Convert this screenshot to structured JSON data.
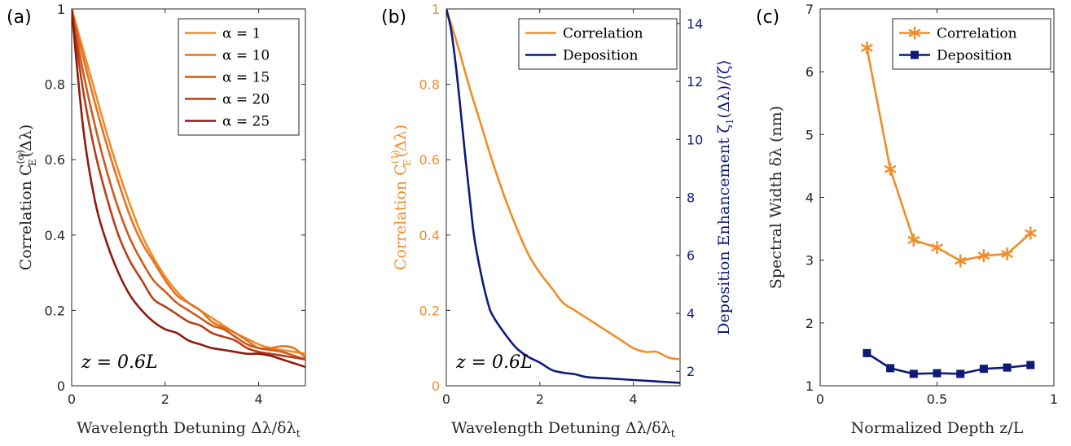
{
  "chart_data": [
    {
      "panel": "(a)",
      "type": "line",
      "xlabel": "Wavelength Detuning Δλ/δλ",
      "xlabel_sub": "t",
      "ylabel": "Correlation C",
      "ylabel_sup": "(α)",
      "ylabel_sub": "E",
      "ylabel_tail": "(Δλ)",
      "xlim": [
        0,
        5
      ],
      "ylim": [
        0,
        1
      ],
      "xticks": [
        0,
        2,
        4
      ],
      "yticks": [
        0,
        0.2,
        0.4,
        0.6,
        0.8,
        1
      ],
      "ytick_labels": [
        "0",
        "0.2",
        "0.4",
        "0.6",
        "0.8",
        "1"
      ],
      "annotation": "z = 0.6L",
      "legend_position": "top-right",
      "series": [
        {
          "name": "α = 1",
          "color": "#F28C28",
          "x": [
            0,
            0.25,
            0.5,
            0.75,
            1,
            1.25,
            1.5,
            1.75,
            2,
            2.25,
            2.5,
            2.75,
            3,
            3.25,
            3.5,
            3.75,
            4,
            4.25,
            4.5,
            4.75,
            5
          ],
          "y": [
            1,
            0.89,
            0.78,
            0.67,
            0.57,
            0.48,
            0.4,
            0.34,
            0.29,
            0.25,
            0.22,
            0.2,
            0.18,
            0.16,
            0.14,
            0.125,
            0.11,
            0.1,
            0.095,
            0.09,
            0.085
          ]
        },
        {
          "name": "α = 10",
          "color": "#E47222",
          "x": [
            0,
            0.25,
            0.5,
            0.75,
            1,
            1.25,
            1.5,
            1.75,
            2,
            2.25,
            2.5,
            2.75,
            3,
            3.25,
            3.5,
            3.75,
            4,
            4.25,
            4.5,
            4.75,
            5
          ],
          "y": [
            1,
            0.87,
            0.75,
            0.64,
            0.54,
            0.45,
            0.38,
            0.33,
            0.28,
            0.24,
            0.22,
            0.2,
            0.17,
            0.155,
            0.14,
            0.12,
            0.1,
            0.1,
            0.105,
            0.1,
            0.075
          ]
        },
        {
          "name": "α = 15",
          "color": "#CF5A1D",
          "x": [
            0,
            0.25,
            0.5,
            0.75,
            1,
            1.25,
            1.5,
            1.75,
            2,
            2.25,
            2.5,
            2.75,
            3,
            3.25,
            3.5,
            3.75,
            4,
            4.25,
            4.5,
            4.75,
            5
          ],
          "y": [
            1,
            0.83,
            0.69,
            0.57,
            0.47,
            0.39,
            0.33,
            0.28,
            0.25,
            0.22,
            0.2,
            0.18,
            0.16,
            0.15,
            0.13,
            0.11,
            0.1,
            0.095,
            0.09,
            0.08,
            0.07
          ]
        },
        {
          "name": "α = 20",
          "color": "#B83F18",
          "x": [
            0,
            0.25,
            0.5,
            0.75,
            1,
            1.25,
            1.5,
            1.75,
            2,
            2.25,
            2.5,
            2.75,
            3,
            3.25,
            3.5,
            3.75,
            4,
            4.25,
            4.5,
            4.75,
            5
          ],
          "y": [
            1,
            0.78,
            0.62,
            0.5,
            0.4,
            0.33,
            0.28,
            0.23,
            0.21,
            0.19,
            0.17,
            0.16,
            0.14,
            0.13,
            0.12,
            0.1,
            0.09,
            0.085,
            0.08,
            0.075,
            0.07
          ]
        },
        {
          "name": "α = 25",
          "color": "#8E1B0E",
          "x": [
            0,
            0.25,
            0.5,
            0.75,
            1,
            1.25,
            1.5,
            1.75,
            2,
            2.25,
            2.5,
            2.75,
            3,
            3.25,
            3.5,
            3.75,
            4,
            4.25,
            4.5,
            4.75,
            5
          ],
          "y": [
            1,
            0.68,
            0.49,
            0.38,
            0.3,
            0.24,
            0.2,
            0.17,
            0.15,
            0.14,
            0.12,
            0.11,
            0.1,
            0.095,
            0.09,
            0.085,
            0.085,
            0.08,
            0.07,
            0.06,
            0.05
          ]
        }
      ]
    },
    {
      "panel": "(b)",
      "type": "line",
      "xlabel": "Wavelength Detuning Δλ/δλ",
      "xlabel_sub": "t",
      "ylabel": "Correlation C",
      "ylabel_sup": "(1)",
      "ylabel_sub": "E",
      "ylabel_tail": "(Δλ)",
      "ylabel_color": "#F28C28",
      "y2label": "Deposition Enhancement ζ",
      "y2label_sub": "1",
      "y2label_tail": "(Δλ)/⟨ζ⟩",
      "y2label_color": "#0D1A7A",
      "xlim": [
        0,
        5
      ],
      "ylim": [
        0,
        1
      ],
      "y2lim": [
        1.5,
        14.5
      ],
      "xticks": [
        0,
        2,
        4
      ],
      "yticks": [
        0,
        0.2,
        0.4,
        0.6,
        0.8,
        1
      ],
      "ytick_labels": [
        "0",
        "0.2",
        "0.4",
        "0.6",
        "0.8",
        "1"
      ],
      "y2ticks": [
        2,
        4,
        6,
        8,
        10,
        12,
        14
      ],
      "annotation": "z = 0.6L",
      "legend_position": "top-right",
      "series": [
        {
          "name": "Correlation",
          "color": "#F28C28",
          "axis": "left",
          "x": [
            0,
            0.25,
            0.5,
            0.75,
            1,
            1.25,
            1.5,
            1.75,
            2,
            2.25,
            2.5,
            2.75,
            3,
            3.25,
            3.5,
            3.75,
            4,
            4.25,
            4.5,
            4.75,
            5
          ],
          "y": [
            1,
            0.9,
            0.79,
            0.69,
            0.59,
            0.5,
            0.42,
            0.35,
            0.3,
            0.26,
            0.22,
            0.2,
            0.18,
            0.16,
            0.14,
            0.12,
            0.1,
            0.09,
            0.09,
            0.075,
            0.07
          ]
        },
        {
          "name": "Deposition",
          "color": "#0D1A7A",
          "axis": "right",
          "x": [
            0,
            0.1,
            0.2,
            0.3,
            0.4,
            0.5,
            0.6,
            0.75,
            0.9,
            1,
            1.25,
            1.5,
            1.75,
            2,
            2.25,
            2.5,
            2.75,
            3,
            3.5,
            4,
            4.5,
            5
          ],
          "y": [
            14.5,
            13.8,
            12.6,
            11.1,
            9.5,
            8.0,
            6.6,
            5.3,
            4.3,
            3.9,
            3.3,
            2.8,
            2.5,
            2.3,
            2.05,
            1.95,
            1.9,
            1.8,
            1.75,
            1.7,
            1.65,
            1.6
          ]
        }
      ]
    },
    {
      "panel": "(c)",
      "type": "line",
      "xlabel": "Normalized Depth z/L",
      "ylabel": "Spectral Width δλ (nm)",
      "xlim": [
        0,
        1
      ],
      "ylim": [
        1,
        7
      ],
      "xticks": [
        0,
        0.5,
        1
      ],
      "xtick_labels": [
        "0",
        "0.5",
        "1"
      ],
      "yticks": [
        1,
        2,
        3,
        4,
        5,
        6,
        7
      ],
      "legend_position": "top-right",
      "series": [
        {
          "name": "Correlation",
          "color": "#F28C28",
          "marker": "asterisk",
          "x": [
            0.2,
            0.3,
            0.4,
            0.5,
            0.6,
            0.7,
            0.8,
            0.9
          ],
          "y": [
            6.38,
            4.45,
            3.32,
            3.2,
            2.99,
            3.07,
            3.1,
            3.43
          ]
        },
        {
          "name": "Deposition",
          "color": "#0D1A7A",
          "marker": "square",
          "x": [
            0.2,
            0.3,
            0.4,
            0.5,
            0.6,
            0.7,
            0.8,
            0.9
          ],
          "y": [
            1.52,
            1.28,
            1.19,
            1.2,
            1.19,
            1.27,
            1.29,
            1.33
          ]
        }
      ]
    }
  ]
}
